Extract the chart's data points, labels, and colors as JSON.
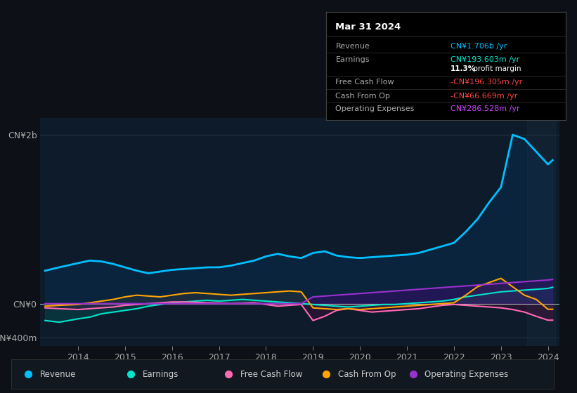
{
  "bg_color": "#0d1117",
  "plot_bg_color": "#0d1b2a",
  "title": "Mar 31 2024",
  "ylabel_top": "CN¥2b",
  "ylabel_zero": "CN¥0",
  "ylabel_bottom": "-CN¥400m",
  "legend": [
    {
      "label": "Revenue",
      "color": "#00bfff"
    },
    {
      "label": "Earnings",
      "color": "#00e5cc"
    },
    {
      "label": "Free Cash Flow",
      "color": "#ff69b4"
    },
    {
      "label": "Cash From Op",
      "color": "#ffa500"
    },
    {
      "label": "Operating Expenses",
      "color": "#9932cc"
    }
  ],
  "tooltip_rows": [
    {
      "label": "Revenue",
      "value": "CN¥1.706b /yr",
      "color": "#00bfff"
    },
    {
      "label": "Earnings",
      "value": "CN¥193.603m /yr",
      "color": "#00e5cc"
    },
    {
      "label": "",
      "value": "11.3% profit margin",
      "color": "#ffffff"
    },
    {
      "label": "Free Cash Flow",
      "value": "-CN¥196.305m /yr",
      "color": "#ff4444"
    },
    {
      "label": "Cash From Op",
      "value": "-CN¥66.669m /yr",
      "color": "#ff4444"
    },
    {
      "label": "Operating Expenses",
      "value": "CN¥286.528m /yr",
      "color": "#cc44ff"
    }
  ],
  "revenue_x": [
    2013.3,
    2013.6,
    2014.0,
    2014.25,
    2014.5,
    2014.75,
    2015.0,
    2015.25,
    2015.5,
    2015.75,
    2016.0,
    2016.25,
    2016.5,
    2016.75,
    2017.0,
    2017.25,
    2017.5,
    2017.75,
    2018.0,
    2018.25,
    2018.5,
    2018.75,
    2019.0,
    2019.25,
    2019.5,
    2019.75,
    2020.0,
    2020.25,
    2020.5,
    2020.75,
    2021.0,
    2021.25,
    2021.5,
    2021.75,
    2022.0,
    2022.25,
    2022.5,
    2022.75,
    2023.0,
    2023.25,
    2023.5,
    2023.75,
    2024.0,
    2024.1
  ],
  "revenue_y": [
    390,
    430,
    480,
    510,
    500,
    470,
    430,
    390,
    360,
    380,
    400,
    410,
    420,
    430,
    430,
    450,
    480,
    510,
    560,
    590,
    560,
    540,
    600,
    620,
    570,
    550,
    540,
    550,
    560,
    570,
    580,
    600,
    640,
    680,
    720,
    850,
    1000,
    1200,
    1380,
    2000,
    1950,
    1800,
    1650,
    1700
  ],
  "earnings_x": [
    2013.3,
    2013.6,
    2014.0,
    2014.25,
    2014.5,
    2014.75,
    2015.0,
    2015.25,
    2015.5,
    2015.75,
    2016.0,
    2016.25,
    2016.5,
    2016.75,
    2017.0,
    2017.25,
    2017.5,
    2017.75,
    2018.0,
    2018.25,
    2018.5,
    2018.75,
    2019.0,
    2019.25,
    2019.5,
    2019.75,
    2020.0,
    2020.25,
    2020.5,
    2020.75,
    2021.0,
    2021.25,
    2021.5,
    2021.75,
    2022.0,
    2022.25,
    2022.5,
    2022.75,
    2023.0,
    2023.25,
    2023.5,
    2023.75,
    2024.0,
    2024.1
  ],
  "earnings_y": [
    -200,
    -220,
    -180,
    -160,
    -120,
    -100,
    -80,
    -60,
    -30,
    -10,
    10,
    20,
    30,
    40,
    30,
    40,
    50,
    40,
    30,
    20,
    10,
    0,
    -10,
    -20,
    -30,
    -40,
    -30,
    -20,
    -10,
    -10,
    0,
    10,
    20,
    30,
    50,
    80,
    100,
    120,
    140,
    150,
    160,
    170,
    180,
    194
  ],
  "fcf_x": [
    2013.3,
    2013.6,
    2014.0,
    2014.25,
    2014.5,
    2014.75,
    2015.0,
    2015.25,
    2015.5,
    2015.75,
    2016.0,
    2016.25,
    2016.5,
    2016.75,
    2017.0,
    2017.25,
    2017.5,
    2017.75,
    2018.0,
    2018.25,
    2018.5,
    2018.75,
    2019.0,
    2019.25,
    2019.5,
    2019.75,
    2020.0,
    2020.25,
    2020.5,
    2020.75,
    2021.0,
    2021.25,
    2021.5,
    2021.75,
    2022.0,
    2022.25,
    2022.5,
    2022.75,
    2023.0,
    2023.25,
    2023.5,
    2023.75,
    2024.0,
    2024.1
  ],
  "fcf_y": [
    -50,
    -60,
    -70,
    -60,
    -50,
    -40,
    -20,
    -10,
    0,
    10,
    20,
    20,
    15,
    10,
    5,
    0,
    5,
    10,
    -10,
    -30,
    -20,
    -10,
    -200,
    -150,
    -80,
    -60,
    -80,
    -100,
    -90,
    -80,
    -70,
    -60,
    -40,
    -20,
    -10,
    -20,
    -30,
    -40,
    -50,
    -70,
    -100,
    -150,
    -196,
    -196
  ],
  "cop_x": [
    2013.3,
    2013.6,
    2014.0,
    2014.25,
    2014.5,
    2014.75,
    2015.0,
    2015.25,
    2015.5,
    2015.75,
    2016.0,
    2016.25,
    2016.5,
    2016.75,
    2017.0,
    2017.25,
    2017.5,
    2017.75,
    2018.0,
    2018.25,
    2018.5,
    2018.75,
    2019.0,
    2019.25,
    2019.5,
    2019.75,
    2020.0,
    2020.25,
    2020.5,
    2020.75,
    2021.0,
    2021.25,
    2021.5,
    2021.75,
    2022.0,
    2022.25,
    2022.5,
    2022.75,
    2023.0,
    2023.25,
    2023.5,
    2023.75,
    2024.0,
    2024.1
  ],
  "cop_y": [
    -30,
    -20,
    -10,
    10,
    30,
    50,
    80,
    100,
    90,
    80,
    100,
    120,
    130,
    120,
    110,
    100,
    110,
    120,
    130,
    140,
    150,
    140,
    -50,
    -60,
    -70,
    -60,
    -70,
    -60,
    -50,
    -40,
    -30,
    -20,
    -10,
    0,
    10,
    100,
    200,
    250,
    300,
    200,
    100,
    50,
    -67,
    -67
  ],
  "ope_x": [
    2013.3,
    2013.6,
    2014.0,
    2014.25,
    2014.5,
    2014.75,
    2015.0,
    2015.25,
    2015.5,
    2015.75,
    2016.0,
    2016.25,
    2016.5,
    2016.75,
    2017.0,
    2017.25,
    2017.5,
    2017.75,
    2018.0,
    2018.25,
    2018.5,
    2018.75,
    2019.0,
    2019.25,
    2019.5,
    2019.75,
    2020.0,
    2020.25,
    2020.5,
    2020.75,
    2021.0,
    2021.25,
    2021.5,
    2021.75,
    2022.0,
    2022.25,
    2022.5,
    2022.75,
    2023.0,
    2023.25,
    2023.5,
    2023.75,
    2024.0,
    2024.1
  ],
  "ope_y": [
    0,
    0,
    0,
    0,
    0,
    0,
    0,
    0,
    0,
    0,
    0,
    0,
    0,
    0,
    0,
    0,
    0,
    0,
    0,
    0,
    0,
    0,
    80,
    90,
    100,
    110,
    120,
    130,
    140,
    150,
    160,
    170,
    180,
    190,
    200,
    210,
    220,
    230,
    240,
    250,
    260,
    270,
    280,
    287
  ]
}
